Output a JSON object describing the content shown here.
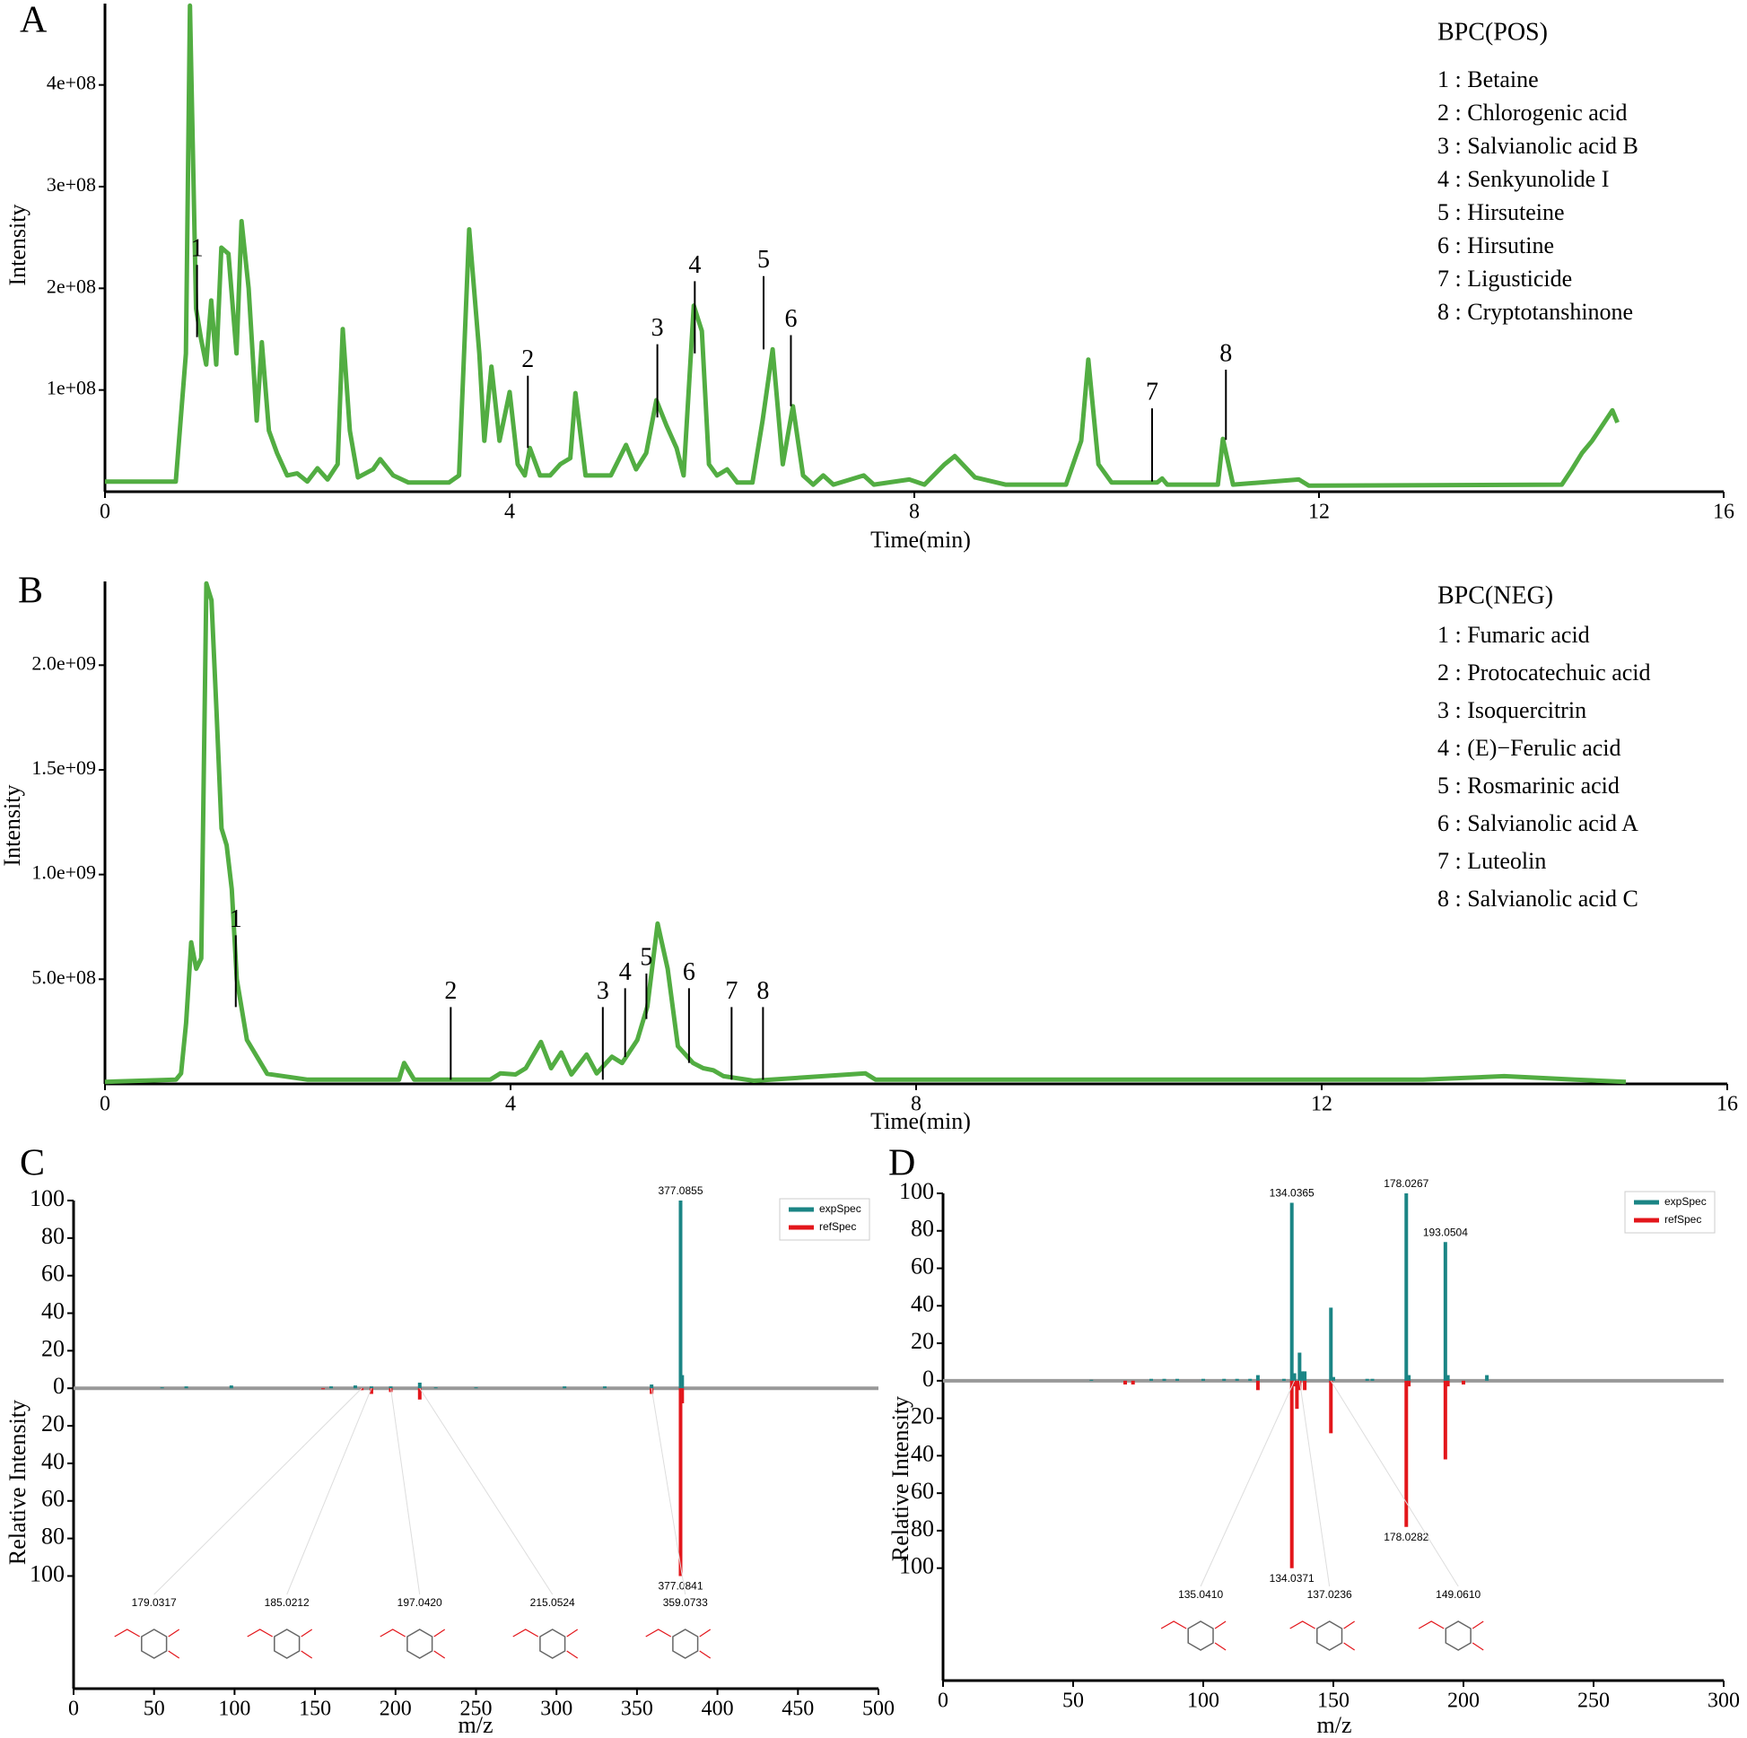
{
  "chart_data": [
    {
      "type": "line",
      "panel": "A",
      "title": "BPC(POS)",
      "xlabel": "Time(min)",
      "ylabel": "Intensity",
      "compounds": [
        "1 : Betaine",
        "2 : Chlorogenic acid",
        "3 : Salvianolic acid B",
        "4 : Senkyunolide I",
        "5 : Hirsuteine",
        "6 : Hirsutine",
        "7 : Ligusticide",
        "8 : Cryptotanshinone"
      ],
      "xlim": [
        0,
        16
      ],
      "xticks": [
        0,
        4,
        8,
        12,
        16
      ],
      "ylim": [
        0,
        480000000.0
      ],
      "yticks": [
        {
          "value": 100000000.0,
          "label": "1e+08"
        },
        {
          "value": 200000000.0,
          "label": "2e+08"
        },
        {
          "value": 300000000.0,
          "label": "3e+08"
        },
        {
          "value": 400000000.0,
          "label": "4e+08"
        }
      ],
      "x": [
        0,
        0.7,
        0.8,
        0.84,
        0.9,
        0.95,
        1.0,
        1.05,
        1.1,
        1.15,
        1.22,
        1.3,
        1.35,
        1.42,
        1.5,
        1.55,
        1.62,
        1.7,
        1.8,
        1.9,
        2.0,
        2.1,
        2.2,
        2.3,
        2.35,
        2.42,
        2.5,
        2.65,
        2.72,
        2.85,
        3.0,
        3.4,
        3.5,
        3.6,
        3.7,
        3.75,
        3.82,
        3.9,
        4.0,
        4.08,
        4.15,
        4.2,
        4.3,
        4.4,
        4.5,
        4.6,
        4.65,
        4.75,
        5.0,
        5.15,
        5.25,
        5.35,
        5.45,
        5.55,
        5.65,
        5.72,
        5.82,
        5.9,
        5.97,
        6.05,
        6.15,
        6.25,
        6.4,
        6.5,
        6.6,
        6.7,
        6.8,
        6.9,
        7.0,
        7.1,
        7.2,
        7.5,
        7.6,
        7.95,
        8.1,
        8.3,
        8.4,
        8.6,
        8.9,
        9.5,
        9.65,
        9.72,
        9.82,
        9.95,
        10.4,
        10.45,
        10.5,
        11.0,
        11.05,
        11.15,
        11.8,
        11.9,
        14.4,
        14.5,
        14.6,
        14.7,
        14.8,
        14.9,
        14.95
      ],
      "series": [
        {
          "color": "#52ad42",
          "values": [
            10000000.0,
            10000000.0,
            136000000.0,
            478000000.0,
            180000000.0,
            150000000.0,
            125000000.0,
            188000000.0,
            125000000.0,
            240000000.0,
            234000000.0,
            136000000.0,
            266000000.0,
            200000000.0,
            70000000.0,
            147000000.0,
            60000000.0,
            38000000.0,
            16000000.0,
            18000000.0,
            10000000.0,
            23000000.0,
            12000000.0,
            27000000.0,
            160000000.0,
            60000000.0,
            14000000.0,
            22000000.0,
            32000000.0,
            16000000.0,
            9000000.0,
            9000000.0,
            16000000.0,
            258000000.0,
            136000000.0,
            50000000.0,
            123000000.0,
            50000000.0,
            98000000.0,
            27000000.0,
            16000000.0,
            43000000.0,
            16000000.0,
            16000000.0,
            27000000.0,
            33000000.0,
            97000000.0,
            16000000.0,
            16000000.0,
            46000000.0,
            22000000.0,
            38000000.0,
            90000000.0,
            65000000.0,
            43000000.0,
            16000000.0,
            183000000.0,
            158000000.0,
            27000000.0,
            16000000.0,
            22000000.0,
            9000000.0,
            9000000.0,
            70000000.0,
            140000000.0,
            27000000.0,
            84000000.0,
            16000000.0,
            7000000.0,
            16000000.0,
            7000000.0,
            16000000.0,
            7000000.0,
            12000000.0,
            7000000.0,
            27000000.0,
            35000000.0,
            14000000.0,
            7000000.0,
            7000000.0,
            50000000.0,
            130000000.0,
            27000000.0,
            9000000.0,
            9000000.0,
            13000000.0,
            7000000.0,
            7000000.0,
            52000000.0,
            7000000.0,
            12000000.0,
            6000000.0,
            7000000.0,
            22000000.0,
            38000000.0,
            50000000.0,
            65000000.0,
            80000000.0,
            68000000.0
          ]
        }
      ],
      "peaks": [
        {
          "label": "1",
          "x": 0.91,
          "y": 152000000.0,
          "top": 223000000.0
        },
        {
          "label": "2",
          "x": 4.18,
          "y": 43000000.0,
          "top": 114000000.0
        },
        {
          "label": "3",
          "x": 5.46,
          "y": 73000000.0,
          "top": 145000000.0
        },
        {
          "label": "4",
          "x": 5.83,
          "y": 136000000.0,
          "top": 207000000.0
        },
        {
          "label": "5",
          "x": 6.51,
          "y": 140000000.0,
          "top": 212000000.0
        },
        {
          "label": "6",
          "x": 6.78,
          "y": 84000000.0,
          "top": 154000000.0
        },
        {
          "label": "7",
          "x": 10.35,
          "y": 10000000.0,
          "top": 82000000.0
        },
        {
          "label": "8",
          "x": 11.08,
          "y": 51000000.0,
          "top": 120000000.0
        }
      ]
    },
    {
      "type": "line",
      "panel": "B",
      "title": "BPC(NEG)",
      "xlabel": "Time(min)",
      "ylabel": "Intensity",
      "compounds": [
        "1 : Fumaric acid",
        "2 : Protocatechuic acid",
        "3 : Isoquercitrin",
        "4 : (E)−Ferulic acid",
        "5 : Rosmarinic acid",
        "6 : Salvianolic acid A",
        "7 : Luteolin",
        "8 : Salvianolic acid C"
      ],
      "xlim": [
        0,
        16
      ],
      "xticks": [
        0,
        4,
        8,
        12,
        16
      ],
      "ylim": [
        0,
        2400000000.0
      ],
      "yticks": [
        {
          "value": 500000000.0,
          "label": "5.0e+08"
        },
        {
          "value": 1000000000.0,
          "label": "1.0e+09"
        },
        {
          "value": 1500000000.0,
          "label": "1.5e+09"
        },
        {
          "value": 2000000000.0,
          "label": "2.0e+09"
        }
      ],
      "x": [
        0,
        0.7,
        0.75,
        0.8,
        0.85,
        0.9,
        0.95,
        1.0,
        1.05,
        1.1,
        1.15,
        1.2,
        1.25,
        1.3,
        1.4,
        1.6,
        2.0,
        2.9,
        2.95,
        3.05,
        3.8,
        3.9,
        4.05,
        4.15,
        4.3,
        4.4,
        4.5,
        4.6,
        4.75,
        4.85,
        5.0,
        5.1,
        5.25,
        5.35,
        5.45,
        5.55,
        5.65,
        5.8,
        5.9,
        6.0,
        6.1,
        6.4,
        7.5,
        7.6,
        13.0,
        13.8,
        14.5,
        15.0
      ],
      "series": [
        {
          "color": "#52ad42",
          "values": [
            10000000.0,
            20000000.0,
            50000000.0,
            290000000.0,
            676000000.0,
            550000000.0,
            600000000.0,
            2390000000.0,
            2310000000.0,
            1780000000.0,
            1220000000.0,
            1140000000.0,
            930000000.0,
            500000000.0,
            210000000.0,
            48000000.0,
            20000000.0,
            20000000.0,
            100000000.0,
            20000000.0,
            20000000.0,
            50000000.0,
            45000000.0,
            75000000.0,
            200000000.0,
            75000000.0,
            150000000.0,
            45000000.0,
            140000000.0,
            50000000.0,
            130000000.0,
            100000000.0,
            210000000.0,
            370000000.0,
            766000000.0,
            550000000.0,
            180000000.0,
            100000000.0,
            75000000.0,
            65000000.0,
            37000000.0,
            15000000.0,
            50000000.0,
            20000000.0,
            20000000.0,
            37000000.0,
            20000000.0,
            10000000.0
          ]
        }
      ],
      "peaks": [
        {
          "label": "1",
          "x": 1.29,
          "y": 367000000.0,
          "top": 710000000.0
        },
        {
          "label": "2",
          "x": 3.41,
          "y": 20000000.0,
          "top": 367000000.0
        },
        {
          "label": "3",
          "x": 4.91,
          "y": 20000000.0,
          "top": 367000000.0
        },
        {
          "label": "4",
          "x": 5.13,
          "y": 128000000.0,
          "top": 457000000.0
        },
        {
          "label": "5",
          "x": 5.34,
          "y": 310000000.0,
          "top": 527000000.0
        },
        {
          "label": "6",
          "x": 5.76,
          "y": 100000000.0,
          "top": 457000000.0
        },
        {
          "label": "7",
          "x": 6.18,
          "y": 20000000.0,
          "top": 367000000.0
        },
        {
          "label": "8",
          "x": 6.49,
          "y": 20000000.0,
          "top": 367000000.0
        }
      ]
    },
    {
      "type": "mirror",
      "panel": "C",
      "xlabel": "m/z",
      "ylabel": "Relative Intensity",
      "legend": "upper right",
      "xlim": [
        0,
        500
      ],
      "xticks": [
        0,
        50,
        100,
        150,
        200,
        250,
        300,
        350,
        400,
        450,
        500
      ],
      "ylim": [
        -160,
        100
      ],
      "yticks": [
        100,
        80,
        60,
        40,
        20,
        0,
        {
          "value": -20,
          "label": "20"
        },
        {
          "value": -40,
          "label": "40"
        },
        {
          "value": -60,
          "label": "60"
        },
        {
          "value": -80,
          "label": "80"
        },
        {
          "value": -100,
          "label": "100"
        }
      ],
      "series": [
        {
          "name": "expSpec",
          "color": "#1b8585",
          "x": [
            55,
            70,
            98,
            160,
            175,
            185.0212,
            197.042,
            215.0524,
            225,
            250,
            305,
            330,
            359.0733,
            377.0855,
            378.09
          ],
          "values": [
            0.5,
            1,
            1.5,
            1,
            1.5,
            1,
            1,
            3,
            0.5,
            0.5,
            1,
            1,
            2,
            100,
            7
          ]
        },
        {
          "name": "refSpec",
          "color": "#e3161b",
          "x": [
            155,
            179.0317,
            185.0212,
            197.042,
            215.0524,
            359.0733,
            377.0841,
            378.09
          ],
          "values": [
            -0.5,
            -1,
            -3,
            -2,
            -6,
            -3,
            -100,
            -8
          ]
        }
      ],
      "annotations": [
        {
          "text": "377.0855",
          "x": 377.0855,
          "y": 100
        },
        {
          "text": "377.0841",
          "x": 377.0841,
          "y": -100
        }
      ],
      "fragments": [
        {
          "text": "179.0317",
          "x": 179.0317
        },
        {
          "text": "185.0212",
          "x": 185.0212
        },
        {
          "text": "197.0420",
          "x": 197.042
        },
        {
          "text": "215.0524",
          "x": 215.0524
        },
        {
          "text": "359.0733",
          "x": 359.0733
        }
      ]
    },
    {
      "type": "mirror",
      "panel": "D",
      "xlabel": "m/z",
      "ylabel": "Relative Intensity",
      "legend": "upper right",
      "xlim": [
        0,
        300
      ],
      "xticks": [
        0,
        50,
        100,
        150,
        200,
        250,
        300
      ],
      "ylim": [
        -160,
        100
      ],
      "yticks": [
        100,
        80,
        60,
        40,
        20,
        0,
        {
          "value": -20,
          "label": "20"
        },
        {
          "value": -40,
          "label": "40"
        },
        {
          "value": -60,
          "label": "60"
        },
        {
          "value": -80,
          "label": "80"
        },
        {
          "value": -100,
          "label": "100"
        }
      ],
      "series": [
        {
          "name": "expSpec",
          "color": "#1b8585",
          "x": [
            57,
            80,
            85,
            90,
            100,
            108,
            113,
            118,
            121,
            131,
            134.0365,
            135.04,
            137.02,
            138,
            139,
            149.06,
            150,
            163,
            165,
            178.0267,
            179,
            193.0504,
            194,
            209
          ],
          "values": [
            0.5,
            1,
            1,
            1,
            1,
            1,
            1,
            1,
            3,
            1,
            95,
            4,
            15,
            5,
            5,
            39,
            2,
            1,
            1,
            100,
            3,
            74,
            3,
            3
          ]
        },
        {
          "name": "refSpec",
          "color": "#e3161b",
          "x": [
            70,
            73,
            121,
            134.0371,
            135.04,
            136,
            137.02,
            139,
            149.061,
            178.0282,
            179,
            193.05,
            194,
            200
          ],
          "values": [
            -2,
            -2,
            -5,
            -100,
            -3,
            -15,
            -5,
            -5,
            -28,
            -78,
            -3,
            -42,
            -3,
            -2
          ]
        }
      ],
      "annotations": [
        {
          "text": "134.0365",
          "x": 134.0365,
          "y": 95
        },
        {
          "text": "178.0267",
          "x": 178.0267,
          "y": 100
        },
        {
          "text": "193.0504",
          "x": 193.0504,
          "y": 74
        },
        {
          "text": "178.0282",
          "x": 178.0282,
          "y": -78
        },
        {
          "text": "134.0371",
          "x": 134.0371,
          "y": -100
        }
      ],
      "fragments": [
        {
          "text": "135.0410",
          "x": 135.041
        },
        {
          "text": "137.0236",
          "x": 137.0236
        },
        {
          "text": "149.0610",
          "x": 149.061
        }
      ]
    }
  ]
}
